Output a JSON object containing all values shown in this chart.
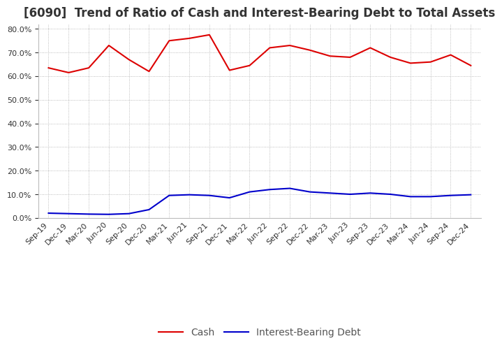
{
  "title": "[6090]  Trend of Ratio of Cash and Interest-Bearing Debt to Total Assets",
  "x_labels": [
    "Sep-19",
    "Dec-19",
    "Mar-20",
    "Jun-20",
    "Sep-20",
    "Dec-20",
    "Mar-21",
    "Jun-21",
    "Sep-21",
    "Dec-21",
    "Mar-22",
    "Jun-22",
    "Sep-22",
    "Dec-22",
    "Mar-23",
    "Jun-23",
    "Sep-23",
    "Dec-23",
    "Mar-24",
    "Jun-24",
    "Sep-24",
    "Dec-24"
  ],
  "cash": [
    0.635,
    0.615,
    0.635,
    0.73,
    0.67,
    0.62,
    0.75,
    0.76,
    0.775,
    0.625,
    0.645,
    0.72,
    0.73,
    0.71,
    0.685,
    0.68,
    0.72,
    0.68,
    0.655,
    0.66,
    0.69,
    0.645
  ],
  "interest_bearing_debt": [
    0.02,
    0.018,
    0.016,
    0.015,
    0.018,
    0.035,
    0.095,
    0.098,
    0.095,
    0.085,
    0.11,
    0.12,
    0.125,
    0.11,
    0.105,
    0.1,
    0.105,
    0.1,
    0.09,
    0.09,
    0.095,
    0.098
  ],
  "cash_color": "#dd0000",
  "debt_color": "#0000cc",
  "ylim": [
    0.0,
    0.82
  ],
  "yticks": [
    0.0,
    0.1,
    0.2,
    0.3,
    0.4,
    0.5,
    0.6,
    0.7,
    0.8
  ],
  "background_color": "#ffffff",
  "grid_color": "#aaaaaa",
  "title_fontsize": 12,
  "legend_fontsize": 10,
  "tick_fontsize": 8,
  "legend_text_color": "#555555",
  "title_color": "#333333"
}
